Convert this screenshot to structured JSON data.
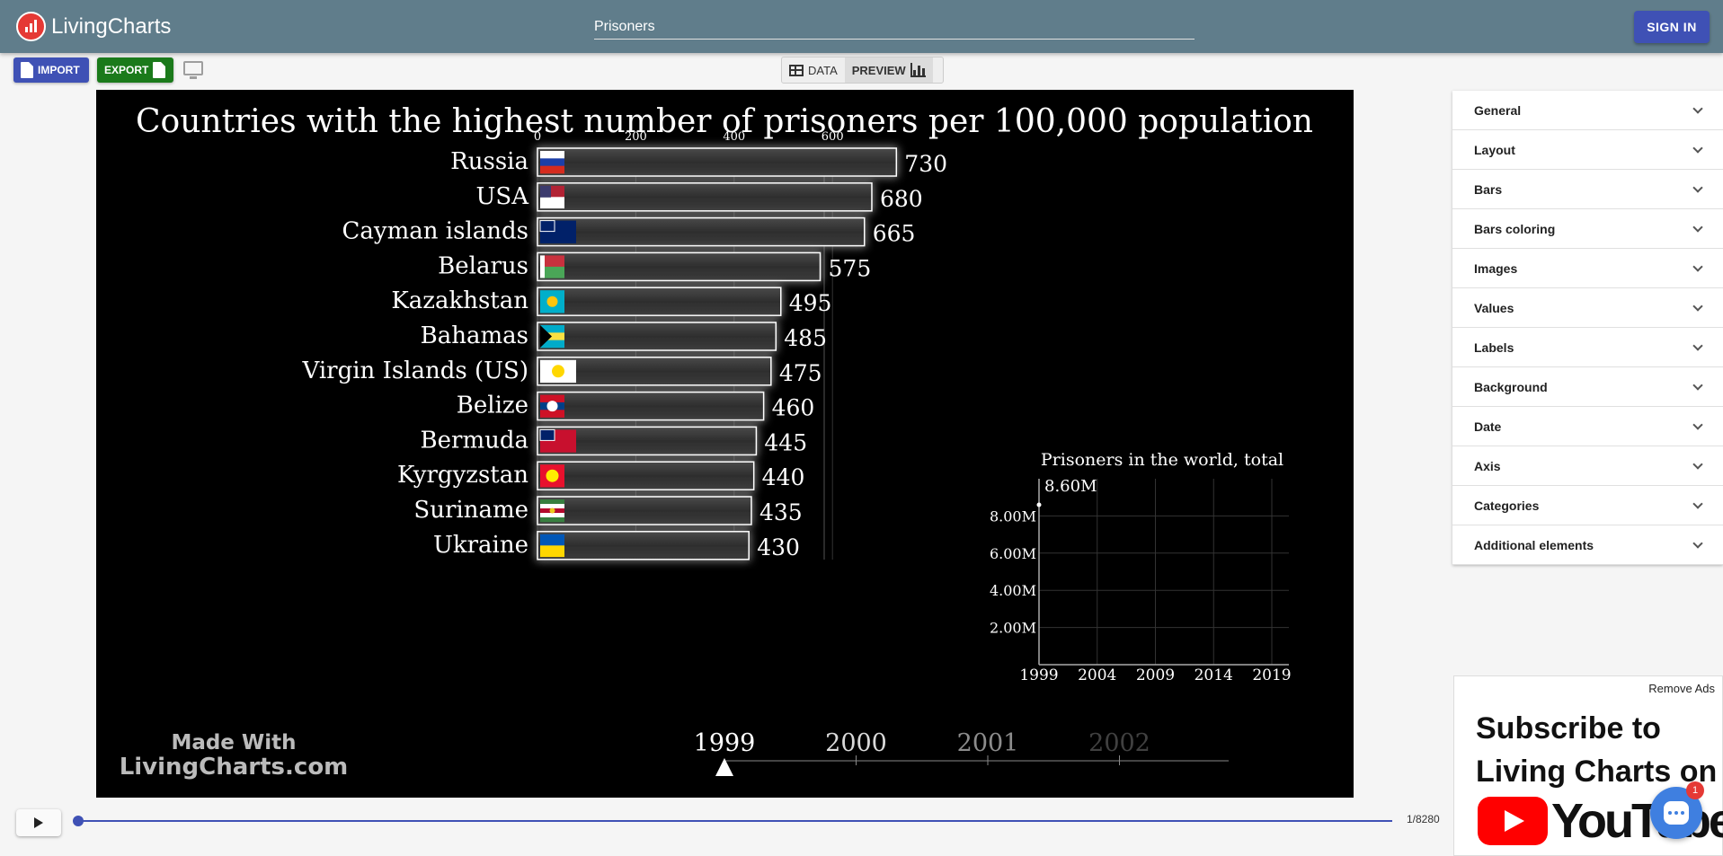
{
  "app": {
    "name": "LivingCharts",
    "signin_label": "SIGN IN"
  },
  "title_input": {
    "value": "Prisoners"
  },
  "toolbar": {
    "import_label": "IMPORT",
    "export_label": "EXPORT",
    "data_label": "DATA",
    "preview_label": "PREVIEW"
  },
  "chart_data": {
    "type": "bar",
    "title": "Countries with the highest number of prisoners per 100,000 population",
    "current_date": "1999",
    "categories": [
      "Russia",
      "USA",
      "Cayman islands",
      "Belarus",
      "Kazakhstan",
      "Bahamas",
      "Virgin Islands (US)",
      "Belize",
      "Bermuda",
      "Kyrgyzstan",
      "Suriname",
      "Ukraine"
    ],
    "values": [
      730,
      680,
      665,
      575,
      495,
      485,
      475,
      460,
      445,
      440,
      435,
      430
    ],
    "value_labels": [
      "730",
      "680",
      "665",
      "575",
      "495",
      "485",
      "475",
      "460",
      "445",
      "440",
      "435",
      "430"
    ],
    "axis_ticks": [
      0,
      200,
      400,
      600
    ],
    "axis_tick_labels": [
      "0",
      "200",
      "400",
      "600"
    ],
    "timeline_labels": [
      "1999",
      "2000",
      "2001",
      "2002"
    ],
    "watermark": [
      "Made With",
      "LivingCharts.com"
    ],
    "colors": {
      "background": "#000000",
      "bar_fill": "#3a3a3a",
      "bar_border": "#ffffff",
      "text": "#ffffff"
    },
    "flags": [
      {
        "name": "russia-flag",
        "stripes": [
          "#ffffff",
          "#1c3fa8",
          "#d52b1e"
        ]
      },
      {
        "name": "usa-flag",
        "stripes": [
          "#b22234",
          "#ffffff"
        ]
      },
      {
        "name": "cayman-flag",
        "stripes": [
          "#012169"
        ]
      },
      {
        "name": "belarus-flag",
        "stripes": [
          "#c8313e",
          "#4aa657"
        ]
      },
      {
        "name": "kazakhstan-flag",
        "stripes": [
          "#00afca"
        ]
      },
      {
        "name": "bahamas-flag",
        "stripes": [
          "#00abc9",
          "#fae042",
          "#00abc9"
        ]
      },
      {
        "name": "virgin-islands-flag",
        "stripes": [
          "#ffffff"
        ]
      },
      {
        "name": "belize-flag",
        "stripes": [
          "#ce1126",
          "#003f87",
          "#ce1126"
        ]
      },
      {
        "name": "bermuda-flag",
        "stripes": [
          "#c8102e"
        ]
      },
      {
        "name": "kyrgyzstan-flag",
        "stripes": [
          "#e8112d"
        ]
      },
      {
        "name": "suriname-flag",
        "stripes": [
          "#377e3f",
          "#ffffff",
          "#b40a2d",
          "#ffffff",
          "#377e3f"
        ]
      },
      {
        "name": "ukraine-flag",
        "stripes": [
          "#0057b7",
          "#ffd700"
        ]
      }
    ],
    "inset": {
      "title": "Prisoners in the world, total",
      "value_label": "8.60M",
      "y_ticks": [
        "8.00M",
        "6.00M",
        "4.00M",
        "2.00M"
      ],
      "y_tick_values": [
        8000000,
        6000000,
        4000000,
        2000000
      ],
      "x_ticks": [
        "1999",
        "2004",
        "2009",
        "2014",
        "2019"
      ],
      "points": [
        {
          "x": 1999,
          "y": 8600000
        }
      ]
    }
  },
  "settings_panel": {
    "items": [
      "General",
      "Layout",
      "Bars",
      "Bars coloring",
      "Images",
      "Values",
      "Labels",
      "Background",
      "Date",
      "Axis",
      "Categories",
      "Additional elements"
    ]
  },
  "ad": {
    "remove_label": "Remove Ads",
    "line1": "Subscribe to",
    "line2": "Living Charts on",
    "brand": "YouTube"
  },
  "chat": {
    "badge": "1"
  },
  "player": {
    "counter": "1/8280",
    "progress": 0.0001
  }
}
